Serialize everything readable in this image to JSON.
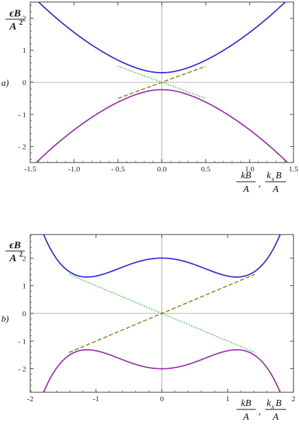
{
  "chart_data": [
    {
      "type": "line",
      "panel_label": "a)",
      "ylabel": {
        "num_main": "ϵB",
        "den_main": "A",
        "den_sup": "2"
      },
      "xlabel": {
        "f1_num": "kB",
        "f1_den": "A",
        "sep": ",",
        "f2_num_main": "k",
        "f2_num_sub": "x",
        "f2_num_tail": "B",
        "f2_den": "A"
      },
      "xlim": [
        -1.5,
        1.5
      ],
      "ylim": [
        -2.5,
        2.5
      ],
      "xticks": [
        -1.5,
        -1.0,
        -0.5,
        0.0,
        0.5,
        1.0,
        1.5
      ],
      "xtick_labels": [
        "-1.5",
        "-1.0",
        "- 0.5",
        "0.0",
        "0.5",
        "1.0",
        "1.5"
      ],
      "yticks": [
        -2,
        -1,
        0,
        1,
        2
      ],
      "ytick_labels": [
        "- 2",
        "- 1",
        "0",
        "1",
        "2"
      ],
      "gap": 0.3,
      "curvature": 1.0,
      "series": [
        {
          "key": "upper",
          "style": "solid",
          "color": "#2b2be0",
          "xrange": [
            -1.5,
            1.5
          ],
          "func": "upper"
        },
        {
          "key": "lower",
          "style": "solid",
          "color": "#9b2fae",
          "xrange": [
            -1.5,
            1.5
          ],
          "func": "lower"
        },
        {
          "key": "dotted",
          "style": "dotted",
          "color": "#3cc83c",
          "xrange": [
            -0.5,
            0.5
          ],
          "func": "neg_line"
        },
        {
          "key": "dashed",
          "style": "dashed",
          "color": "#8a8a1e",
          "xrange": [
            -0.5,
            0.5
          ],
          "func": "pos_line"
        }
      ]
    },
    {
      "type": "line",
      "panel_label": "b)",
      "ylabel": {
        "num_main": "ϵB",
        "den_main": "A",
        "den_sup": "2"
      },
      "xlabel": {
        "f1_num": "kB",
        "f1_den": "A",
        "sep": ",",
        "f2_num_main": "k",
        "f2_num_sub": "x",
        "f2_num_tail": "B",
        "f2_den": "A"
      },
      "xlim": [
        -2,
        2
      ],
      "ylim": [
        -2.85,
        2.85
      ],
      "xticks": [
        -2,
        -1,
        0,
        1,
        2
      ],
      "xtick_labels": [
        "-2",
        "-1",
        "0",
        "1",
        "2"
      ],
      "yticks": [
        -2,
        -1,
        0,
        1,
        2
      ],
      "ytick_labels": [
        "- 2",
        "- 1",
        "0",
        "1",
        "2"
      ],
      "gap": 2.0,
      "curvature": 1.0,
      "series": [
        {
          "key": "upper",
          "style": "solid",
          "color": "#2b2be0",
          "xrange": [
            -2,
            2
          ],
          "func": "upper"
        },
        {
          "key": "lower",
          "style": "solid",
          "color": "#9b2fae",
          "xrange": [
            -2,
            2
          ],
          "func": "lower"
        },
        {
          "key": "dotted",
          "style": "dotted",
          "color": "#3cc83c",
          "xrange": [
            -1.41,
            1.41
          ],
          "func": "neg_line"
        },
        {
          "key": "dashed",
          "style": "dashed",
          "color": "#8a8a1e",
          "xrange": [
            -1.41,
            1.41
          ],
          "func": "pos_line"
        }
      ]
    }
  ]
}
